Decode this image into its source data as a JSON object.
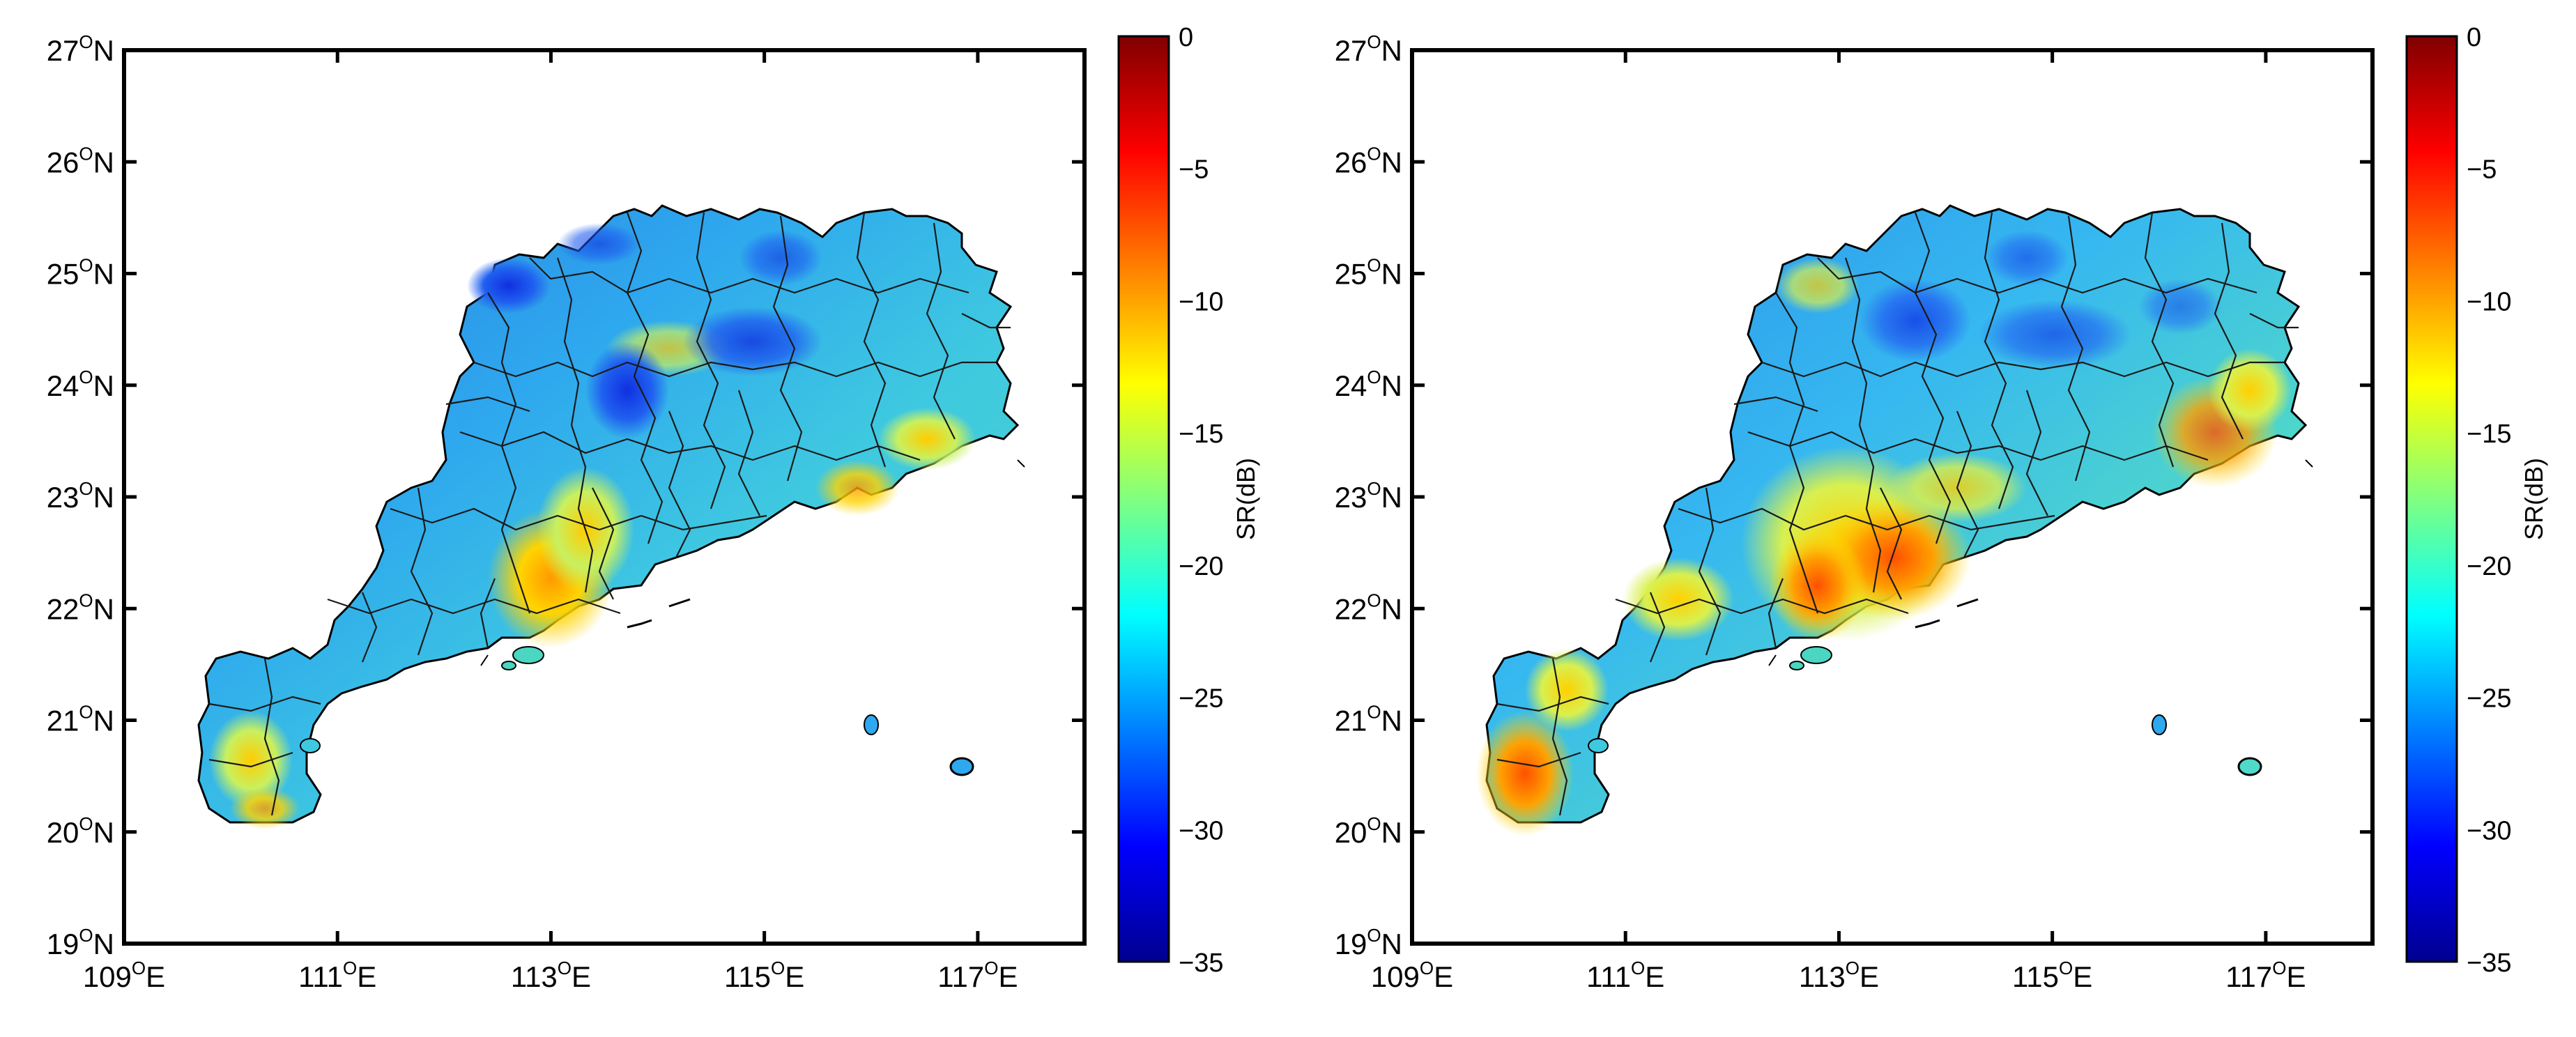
{
  "maps": [
    {
      "id": "left",
      "lon_ticks": [
        "109",
        "111",
        "113",
        "115",
        "117"
      ],
      "lat_ticks": [
        "19",
        "20",
        "21",
        "22",
        "23",
        "24",
        "25",
        "26",
        "27"
      ],
      "lon_suffix": "E",
      "lat_suffix": "N",
      "degree_mark": "O",
      "lon_range": [
        109,
        118
      ],
      "lat_range": [
        19,
        27
      ],
      "colorbar": {
        "label": "SR(dB)",
        "ticks": [
          "0",
          "-5",
          "-10",
          "-15",
          "-20",
          "-25",
          "-30",
          "-35"
        ],
        "range": [
          -35,
          0
        ]
      }
    },
    {
      "id": "right",
      "lon_ticks": [
        "109",
        "111",
        "113",
        "115",
        "117"
      ],
      "lat_ticks": [
        "19",
        "20",
        "21",
        "22",
        "23",
        "24",
        "25",
        "26",
        "27"
      ],
      "lon_suffix": "E",
      "lat_suffix": "N",
      "degree_mark": "O",
      "lon_range": [
        109,
        118
      ],
      "lat_range": [
        19,
        27
      ],
      "colorbar": {
        "label": "SR(dB)",
        "ticks": [
          "0",
          "-5",
          "-10",
          "-15",
          "-20",
          "-25",
          "-30",
          "-35"
        ],
        "range": [
          -35,
          0
        ]
      }
    }
  ],
  "colors": {
    "frame": "#000000",
    "boundary": "#1a1a1a",
    "colormap": [
      "#00008f",
      "#0000ff",
      "#0080ff",
      "#00ffff",
      "#80ff80",
      "#ffff00",
      "#ff8000",
      "#ff0000",
      "#800000"
    ]
  }
}
